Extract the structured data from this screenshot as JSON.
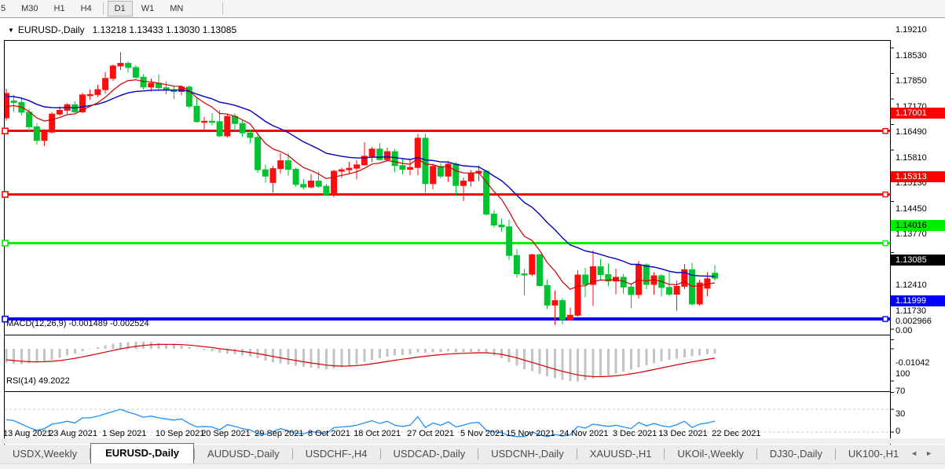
{
  "toolbar": {
    "timeframes": [
      "5",
      "M30",
      "H1",
      "H4",
      "D1",
      "W1",
      "MN"
    ],
    "active": "D1"
  },
  "chart": {
    "title_symbol": "EURUSD-,Daily",
    "title_ohlc": "1.13218 1.13433 1.13030 1.13085",
    "dropdown_icon": "▼",
    "colors": {
      "bull": "#FF0D0D",
      "bear": "#00C330",
      "ma_fast": "#CC0000",
      "ma_slow": "#0000C0",
      "hline_red": "#FF0000",
      "hline_green": "#00EE00",
      "hline_blue": "#0000FF",
      "macd_hist": "#C3C3C3",
      "macd_signal": "#D40000",
      "rsi_line": "#1E90FF"
    },
    "price_axis_labels": [
      "1.19210",
      "1.18530",
      "1.17850",
      "1.17170",
      "1.16490",
      "1.15810",
      "1.15130",
      "1.14450",
      "1.13770",
      "1.12410",
      "1.11730"
    ],
    "hlines": [
      {
        "price": 1.17001,
        "label": "1.17001",
        "color": "#FF0000",
        "bg": "#FF0000",
        "fg": "#FFFFFF",
        "w": 3
      },
      {
        "price": 1.15313,
        "label": "1.15313",
        "color": "#FF0000",
        "bg": "#FF0000",
        "fg": "#FFFFFF",
        "w": 3
      },
      {
        "price": 1.14016,
        "label": "1.14016",
        "color": "#00EE00",
        "bg": "#00EE00",
        "fg": "#000000",
        "w": 3
      },
      {
        "price": 1.11999,
        "label": "1.11999",
        "color": "#0000FF",
        "bg": "#0000FF",
        "fg": "#FFFFFF",
        "w": 4
      }
    ],
    "current_price": {
      "price": 1.13085,
      "label": "1.13085",
      "bg": "#000000",
      "fg": "#FFFFFF"
    },
    "dates": [
      {
        "t": "13 Aug 2021",
        "i": 0
      },
      {
        "t": "23 Aug 2021",
        "i": 6
      },
      {
        "t": "1 Sep 2021",
        "i": 13
      },
      {
        "t": "10 Sep 2021",
        "i": 20
      },
      {
        "t": "20 Sep 2021",
        "i": 26
      },
      {
        "t": "29 Sep 2021",
        "i": 33
      },
      {
        "t": "8 Oct 2021",
        "i": 40
      },
      {
        "t": "18 Oct 2021",
        "i": 46
      },
      {
        "t": "27 Oct 2021",
        "i": 53
      },
      {
        "t": "5 Nov 2021",
        "i": 60
      },
      {
        "t": "15 Nov 2021",
        "i": 66
      },
      {
        "t": "24 Nov 2021",
        "i": 73
      },
      {
        "t": "3 Dec 2021",
        "i": 80
      },
      {
        "t": "13 Dec 2021",
        "i": 86
      },
      {
        "t": "22 Dec 2021",
        "i": 93
      }
    ],
    "candles": [
      [
        1.1735,
        1.1812,
        1.1728,
        1.18
      ],
      [
        1.178,
        1.1797,
        1.1751,
        1.1776
      ],
      [
        1.1776,
        1.1786,
        1.1741,
        1.175
      ],
      [
        1.175,
        1.1758,
        1.17,
        1.1711
      ],
      [
        1.1711,
        1.172,
        1.1664,
        1.1675
      ],
      [
        1.1675,
        1.1705,
        1.166,
        1.1697
      ],
      [
        1.1697,
        1.175,
        1.1693,
        1.1745
      ],
      [
        1.1745,
        1.1765,
        1.174,
        1.1755
      ],
      [
        1.1755,
        1.1774,
        1.1745,
        1.177
      ],
      [
        1.177,
        1.1779,
        1.1747,
        1.1751
      ],
      [
        1.1751,
        1.1802,
        1.1748,
        1.1796
      ],
      [
        1.1796,
        1.181,
        1.1783,
        1.1797
      ],
      [
        1.1797,
        1.1823,
        1.179,
        1.181
      ],
      [
        1.181,
        1.1857,
        1.18,
        1.184
      ],
      [
        1.184,
        1.1877,
        1.1833,
        1.1873
      ],
      [
        1.1873,
        1.1909,
        1.1862,
        1.188
      ],
      [
        1.188,
        1.1886,
        1.1855,
        1.1869
      ],
      [
        1.1869,
        1.1875,
        1.1838,
        1.1843
      ],
      [
        1.1843,
        1.1851,
        1.181,
        1.1817
      ],
      [
        1.1817,
        1.184,
        1.1805,
        1.1827
      ],
      [
        1.1827,
        1.1851,
        1.181,
        1.1815
      ],
      [
        1.1815,
        1.1832,
        1.1798,
        1.181
      ],
      [
        1.181,
        1.182,
        1.1785,
        1.1805
      ],
      [
        1.1805,
        1.1822,
        1.1795,
        1.1817
      ],
      [
        1.1817,
        1.1821,
        1.176,
        1.1766
      ],
      [
        1.1766,
        1.1788,
        1.1722,
        1.1725
      ],
      [
        1.1725,
        1.1737,
        1.17,
        1.1726
      ],
      [
        1.1726,
        1.1748,
        1.1715,
        1.1725
      ],
      [
        1.1725,
        1.1756,
        1.1684,
        1.1687
      ],
      [
        1.1687,
        1.1745,
        1.1683,
        1.1739
      ],
      [
        1.1739,
        1.1747,
        1.1701,
        1.172
      ],
      [
        1.172,
        1.173,
        1.1685,
        1.1695
      ],
      [
        1.1695,
        1.1705,
        1.1667,
        1.1683
      ],
      [
        1.1683,
        1.169,
        1.1589,
        1.1597
      ],
      [
        1.1597,
        1.1611,
        1.1563,
        1.158
      ],
      [
        1.1563,
        1.1608,
        1.1537,
        1.16
      ],
      [
        1.16,
        1.1641,
        1.1587,
        1.1621
      ],
      [
        1.1621,
        1.164,
        1.1581,
        1.1598
      ],
      [
        1.1598,
        1.1602,
        1.1552,
        1.1558
      ],
      [
        1.1558,
        1.1572,
        1.1545,
        1.1551
      ],
      [
        1.1551,
        1.1586,
        1.1547,
        1.1567
      ],
      [
        1.1567,
        1.1592,
        1.1549,
        1.1553
      ],
      [
        1.1553,
        1.156,
        1.1529,
        1.153
      ],
      [
        1.153,
        1.1597,
        1.1524,
        1.1593
      ],
      [
        1.1593,
        1.1602,
        1.1575,
        1.1597
      ],
      [
        1.1597,
        1.1618,
        1.1588,
        1.1601
      ],
      [
        1.1601,
        1.1622,
        1.1571,
        1.161
      ],
      [
        1.161,
        1.167,
        1.1609,
        1.1633
      ],
      [
        1.1633,
        1.1658,
        1.1617,
        1.1652
      ],
      [
        1.1652,
        1.1667,
        1.1621,
        1.1624
      ],
      [
        1.1624,
        1.1656,
        1.162,
        1.1645
      ],
      [
        1.1645,
        1.1652,
        1.1591,
        1.1608
      ],
      [
        1.1608,
        1.1628,
        1.1585,
        1.1598
      ],
      [
        1.1598,
        1.1626,
        1.1583,
        1.1603
      ],
      [
        1.1603,
        1.1692,
        1.1582,
        1.1681
      ],
      [
        1.1681,
        1.1692,
        1.1535,
        1.156
      ],
      [
        1.156,
        1.161,
        1.1545,
        1.1606
      ],
      [
        1.1606,
        1.1614,
        1.1574,
        1.158
      ],
      [
        1.158,
        1.162,
        1.1565,
        1.1612
      ],
      [
        1.1612,
        1.1617,
        1.1528,
        1.1555
      ],
      [
        1.1555,
        1.1576,
        1.1514,
        1.1567
      ],
      [
        1.1567,
        1.1596,
        1.1552,
        1.1588
      ],
      [
        1.1588,
        1.1609,
        1.1567,
        1.1593
      ],
      [
        1.1593,
        1.1596,
        1.1475,
        1.1479
      ],
      [
        1.1479,
        1.149,
        1.1443,
        1.145
      ],
      [
        1.145,
        1.1467,
        1.1432,
        1.1445
      ],
      [
        1.1445,
        1.1464,
        1.1357,
        1.1369
      ],
      [
        1.1369,
        1.1386,
        1.131,
        1.132
      ],
      [
        1.132,
        1.1333,
        1.1263,
        1.1319
      ],
      [
        1.1319,
        1.1374,
        1.1314,
        1.1371
      ],
      [
        1.1371,
        1.1374,
        1.1287,
        1.1289
      ],
      [
        1.1289,
        1.1306,
        1.1226,
        1.1237
      ],
      [
        1.1237,
        1.1275,
        1.1184,
        1.1249
      ],
      [
        1.1249,
        1.1255,
        1.1186,
        1.1198
      ],
      [
        1.1198,
        1.123,
        1.1196,
        1.121
      ],
      [
        1.121,
        1.133,
        1.1206,
        1.1317
      ],
      [
        1.1317,
        1.1336,
        1.1258,
        1.1292
      ],
      [
        1.1292,
        1.1383,
        1.1235,
        1.1339
      ],
      [
        1.1339,
        1.136,
        1.1305,
        1.1318
      ],
      [
        1.1318,
        1.1348,
        1.1287,
        1.1301
      ],
      [
        1.1301,
        1.1334,
        1.1266,
        1.1311
      ],
      [
        1.1311,
        1.1319,
        1.1267,
        1.1285
      ],
      [
        1.1285,
        1.1293,
        1.1228,
        1.1265
      ],
      [
        1.1265,
        1.1355,
        1.1254,
        1.1344
      ],
      [
        1.1344,
        1.1348,
        1.128,
        1.1292
      ],
      [
        1.1292,
        1.1324,
        1.1265,
        1.1315
      ],
      [
        1.1315,
        1.1319,
        1.126,
        1.1284
      ],
      [
        1.1284,
        1.1325,
        1.1261,
        1.1266
      ],
      [
        1.1266,
        1.1303,
        1.1222,
        1.1287
      ],
      [
        1.1287,
        1.1346,
        1.128,
        1.1331
      ],
      [
        1.1331,
        1.135,
        1.1236,
        1.124
      ],
      [
        1.124,
        1.1305,
        1.1236,
        1.1296
      ],
      [
        1.1282,
        1.1324,
        1.1261,
        1.1307
      ],
      [
        1.13218,
        1.13433,
        1.1303,
        1.13085
      ]
    ]
  },
  "macd": {
    "label": "MACD(12,26,9) -0.001489 -0.002524",
    "axis_labels": [
      {
        "t": "0.002966",
        "v": 0.002966
      },
      {
        "t": "0.00",
        "v": 0
      },
      {
        "t": "-0.01042",
        "v": -0.01042
      }
    ],
    "main": [
      -0.0046,
      -0.0048,
      -0.0049,
      -0.0047,
      -0.0044,
      -0.004,
      -0.0035,
      -0.0029,
      -0.0022,
      -0.0015,
      -0.0008,
      -0.0001,
      0.0005,
      0.0011,
      0.0016,
      0.002,
      0.0022,
      0.0023,
      0.0023,
      0.0021,
      0.0019,
      0.0016,
      0.0013,
      0.001,
      0.0006,
      0.0001,
      -0.0004,
      -0.0008,
      -0.0013,
      -0.0015,
      -0.0018,
      -0.0021,
      -0.0024,
      -0.0031,
      -0.0038,
      -0.0043,
      -0.0047,
      -0.0051,
      -0.0055,
      -0.0059,
      -0.0061,
      -0.0063,
      -0.0066,
      -0.0064,
      -0.006,
      -0.0055,
      -0.0049,
      -0.0042,
      -0.0035,
      -0.003,
      -0.0025,
      -0.0022,
      -0.002,
      -0.0018,
      -0.0012,
      -0.0013,
      -0.0011,
      -0.001,
      -0.0008,
      -0.001,
      -0.0011,
      -0.001,
      -0.0009,
      -0.0014,
      -0.0022,
      -0.0031,
      -0.0043,
      -0.0055,
      -0.0066,
      -0.0073,
      -0.0081,
      -0.0089,
      -0.0095,
      -0.01,
      -0.0104,
      -0.0105,
      -0.0102,
      -0.0097,
      -0.0092,
      -0.0086,
      -0.008,
      -0.0074,
      -0.0067,
      -0.006,
      -0.0053,
      -0.0047,
      -0.0041,
      -0.0036,
      -0.0032,
      -0.0028,
      -0.0024,
      -0.0021,
      -0.0018,
      -0.0015
    ]
  },
  "rsi": {
    "label": "RSI(14) 49.2022",
    "axis_labels": [
      {
        "t": "100",
        "v": 100
      },
      {
        "t": "70",
        "v": 70
      },
      {
        "t": "30",
        "v": 30
      },
      {
        "t": "0",
        "v": 0
      }
    ],
    "levels": [
      70,
      30
    ],
    "values": [
      52,
      50,
      44,
      38,
      33,
      36,
      44,
      46,
      49,
      46,
      55,
      55,
      58,
      62,
      66,
      70,
      65,
      61,
      56,
      58,
      55,
      53,
      51,
      53,
      45,
      39,
      40,
      39,
      34,
      43,
      40,
      36,
      34,
      27,
      26,
      31,
      36,
      32,
      28,
      27,
      31,
      29,
      27,
      38,
      39,
      40,
      42,
      46,
      50,
      45,
      49,
      42,
      40,
      42,
      57,
      38,
      46,
      42,
      48,
      39,
      42,
      46,
      47,
      33,
      30,
      29,
      24,
      22,
      22,
      30,
      25,
      22,
      26,
      23,
      25,
      40,
      37,
      44,
      42,
      40,
      42,
      39,
      36,
      47,
      41,
      45,
      41,
      39,
      43,
      49,
      38,
      44,
      46,
      49.2
    ]
  },
  "tabs": {
    "items": [
      "USDX,Weekly",
      "EURUSD-,Daily",
      "AUDUSD-,Daily",
      "USDCHF-,H4",
      "USDCAD-,Daily",
      "USDCNH-,Daily",
      "XAUUSD-,H1",
      "UKOil-,Weekly",
      "DJ30-,Daily",
      "UK100-,H1"
    ],
    "active": "EURUSD-,Daily",
    "left_arrow": "◄",
    "right_arrow": "►"
  }
}
